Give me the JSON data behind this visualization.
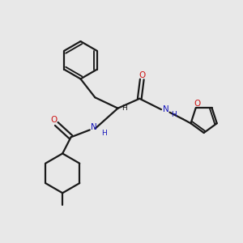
{
  "bg_color": "#e8e8e8",
  "bond_color": "#1a1a1a",
  "N_color": "#1414bb",
  "O_color": "#cc1414",
  "line_width": 1.6,
  "figsize": [
    3.0,
    3.0
  ],
  "dpi": 100,
  "xlim": [
    0,
    10
  ],
  "ylim": [
    0,
    10
  ]
}
